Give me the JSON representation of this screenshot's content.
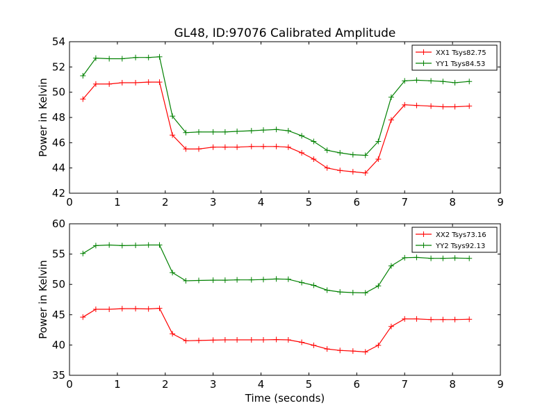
{
  "title": "GL48, ID:97076 Calibrated Amplitude",
  "chart_data": [
    {
      "type": "line",
      "title": "GL48, ID:97076 Calibrated Amplitude",
      "xlabel": "",
      "ylabel": "Power in Kelvin",
      "xlim": [
        0,
        9
      ],
      "ylim": [
        42,
        54
      ],
      "xticks": [
        "0",
        "1",
        "2",
        "3",
        "4",
        "5",
        "6",
        "7",
        "8",
        "9"
      ],
      "yticks": [
        "42",
        "44",
        "46",
        "48",
        "50",
        "52",
        "54"
      ],
      "grid": false,
      "legend_position": "top-right",
      "marker": "+",
      "x": [
        0.28,
        0.55,
        0.83,
        1.1,
        1.38,
        1.65,
        1.93,
        2.2,
        2.48,
        2.75,
        3.03,
        3.3,
        3.58,
        3.85,
        4.13,
        4.4,
        4.68,
        4.95,
        5.23,
        5.5,
        5.78,
        6.05,
        6.33,
        6.6,
        6.88,
        7.15,
        7.43,
        7.7,
        7.98,
        8.25,
        8.35
      ],
      "series": [
        {
          "name": "XX1 Tsys82.75",
          "color": "#ff0000",
          "x": [
            0.28,
            0.55,
            0.83,
            1.1,
            1.38,
            1.65,
            1.88,
            2.15,
            2.43,
            2.7,
            3.0,
            3.25,
            3.5,
            3.8,
            4.05,
            4.32,
            4.57,
            4.85,
            5.1,
            5.38,
            5.65,
            5.92,
            6.18,
            6.45,
            6.72,
            7.0,
            7.25,
            7.55,
            7.8,
            8.05,
            8.35
          ],
          "y": [
            49.45,
            50.65,
            50.65,
            50.75,
            50.75,
            50.8,
            50.8,
            46.6,
            45.5,
            45.5,
            45.65,
            45.65,
            45.65,
            45.7,
            45.7,
            45.7,
            45.65,
            45.2,
            44.7,
            44.0,
            43.8,
            43.7,
            43.6,
            44.7,
            47.8,
            49.0,
            48.95,
            48.9,
            48.85,
            48.85,
            48.9
          ]
        },
        {
          "name": "YY1 Tsys84.53",
          "color": "#008000",
          "x": [
            0.28,
            0.55,
            0.83,
            1.1,
            1.38,
            1.65,
            1.88,
            2.15,
            2.43,
            2.7,
            3.0,
            3.25,
            3.5,
            3.8,
            4.05,
            4.32,
            4.57,
            4.85,
            5.1,
            5.38,
            5.65,
            5.92,
            6.18,
            6.45,
            6.72,
            7.0,
            7.25,
            7.55,
            7.8,
            8.05,
            8.35
          ],
          "y": [
            51.3,
            52.7,
            52.65,
            52.65,
            52.75,
            52.75,
            52.8,
            48.1,
            46.8,
            46.85,
            46.85,
            46.85,
            46.9,
            46.95,
            47.0,
            47.05,
            46.95,
            46.55,
            46.1,
            45.4,
            45.2,
            45.05,
            45.0,
            46.1,
            49.6,
            50.9,
            50.95,
            50.9,
            50.85,
            50.75,
            50.85
          ]
        }
      ]
    },
    {
      "type": "line",
      "title": "",
      "xlabel": "Time (seconds)",
      "ylabel": "Power in Kelvin",
      "xlim": [
        0,
        9
      ],
      "ylim": [
        35,
        60
      ],
      "xticks": [
        "0",
        "1",
        "2",
        "3",
        "4",
        "5",
        "6",
        "7",
        "8",
        "9"
      ],
      "yticks": [
        "35",
        "40",
        "45",
        "50",
        "55",
        "60"
      ],
      "grid": false,
      "legend_position": "top-right",
      "marker": "+",
      "series": [
        {
          "name": "XX2 Tsys73.16",
          "color": "#ff0000",
          "x": [
            0.28,
            0.55,
            0.83,
            1.1,
            1.38,
            1.65,
            1.88,
            2.15,
            2.43,
            2.7,
            3.0,
            3.25,
            3.5,
            3.8,
            4.05,
            4.32,
            4.57,
            4.85,
            5.1,
            5.38,
            5.65,
            5.92,
            6.18,
            6.45,
            6.72,
            7.0,
            7.25,
            7.55,
            7.8,
            8.05,
            8.35
          ],
          "y": [
            44.6,
            45.9,
            45.9,
            46.0,
            46.0,
            45.95,
            46.05,
            41.85,
            40.7,
            40.75,
            40.8,
            40.85,
            40.85,
            40.85,
            40.85,
            40.9,
            40.85,
            40.45,
            39.95,
            39.35,
            39.1,
            39.0,
            38.85,
            39.95,
            43.05,
            44.3,
            44.3,
            44.2,
            44.2,
            44.2,
            44.25
          ]
        },
        {
          "name": "YY2 Tsys92.13",
          "color": "#008000",
          "x": [
            0.28,
            0.55,
            0.83,
            1.1,
            1.38,
            1.65,
            1.88,
            2.15,
            2.43,
            2.7,
            3.0,
            3.25,
            3.5,
            3.8,
            4.05,
            4.32,
            4.57,
            4.85,
            5.1,
            5.38,
            5.65,
            5.92,
            6.18,
            6.45,
            6.72,
            7.0,
            7.25,
            7.55,
            7.8,
            8.05,
            8.35
          ],
          "y": [
            55.1,
            56.4,
            56.5,
            56.4,
            56.45,
            56.5,
            56.5,
            51.95,
            50.6,
            50.65,
            50.7,
            50.7,
            50.75,
            50.75,
            50.8,
            50.9,
            50.85,
            50.3,
            49.85,
            49.05,
            48.75,
            48.65,
            48.6,
            49.75,
            53.05,
            54.4,
            54.45,
            54.3,
            54.3,
            54.35,
            54.3
          ]
        }
      ]
    }
  ]
}
